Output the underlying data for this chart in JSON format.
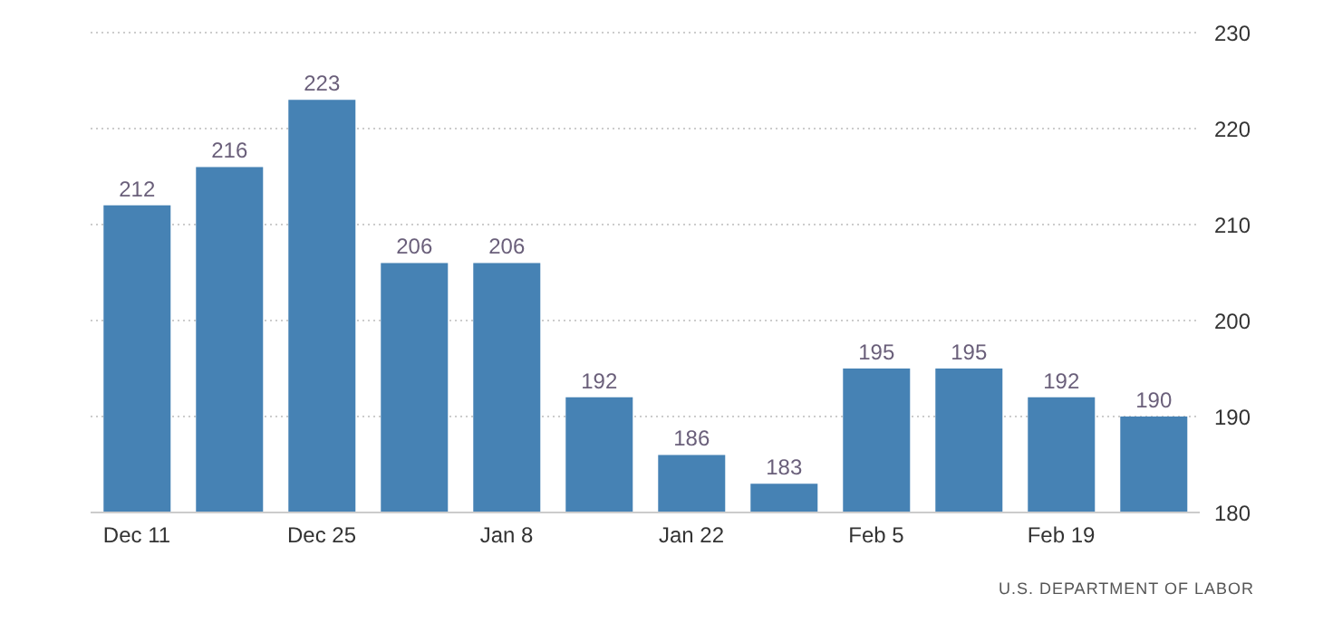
{
  "chart_data": {
    "type": "bar",
    "categories": [
      "Dec 11",
      null,
      "Dec 25",
      null,
      "Jan 8",
      null,
      "Jan 22",
      null,
      "Feb 5",
      null,
      "Feb 19",
      null
    ],
    "values": [
      212,
      216,
      223,
      206,
      206,
      192,
      186,
      183,
      195,
      195,
      192,
      190
    ],
    "color": "#4682b4",
    "ylim": [
      180,
      230
    ],
    "yticks": [
      180,
      190,
      200,
      210,
      220,
      230
    ],
    "grid": "y",
    "data_labels": true,
    "annotations": [
      "U.S. DEPARTMENT OF LABOR"
    ]
  }
}
